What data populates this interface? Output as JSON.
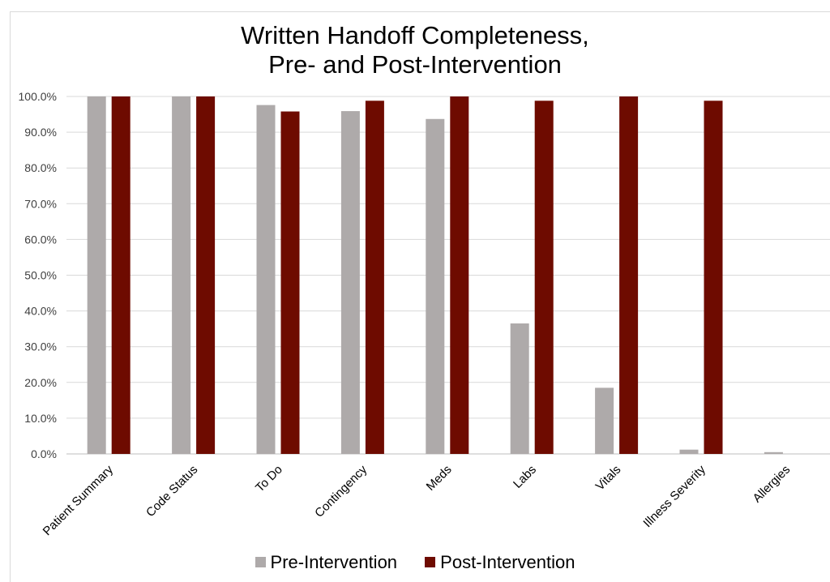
{
  "chart_data": {
    "type": "bar",
    "title_line1": "Written Handoff Completeness,",
    "title_line2": "Pre- and Post-Intervention",
    "xlabel": "",
    "ylabel": "",
    "ylim": [
      0,
      100
    ],
    "y_ticks": [
      "0.0%",
      "10.0%",
      "20.0%",
      "30.0%",
      "40.0%",
      "50.0%",
      "60.0%",
      "70.0%",
      "80.0%",
      "90.0%",
      "100.0%"
    ],
    "categories": [
      "Patient Summary",
      "Code Status",
      "To Do",
      "Contingency",
      "Meds",
      "Labs",
      "Vitals",
      "Illness Severity",
      "Allergies"
    ],
    "series": [
      {
        "name": "Pre-Intervention",
        "color": "#aeaaaa",
        "values": [
          100,
          100,
          97.6,
          95.9,
          93.7,
          36.5,
          18.5,
          1.2,
          0.5
        ]
      },
      {
        "name": "Post-Intervention",
        "color": "#6e0b00",
        "values": [
          100,
          100,
          95.8,
          98.8,
          100,
          98.8,
          100,
          98.8,
          0
        ]
      }
    ],
    "grid": true,
    "legend_position": "bottom"
  }
}
